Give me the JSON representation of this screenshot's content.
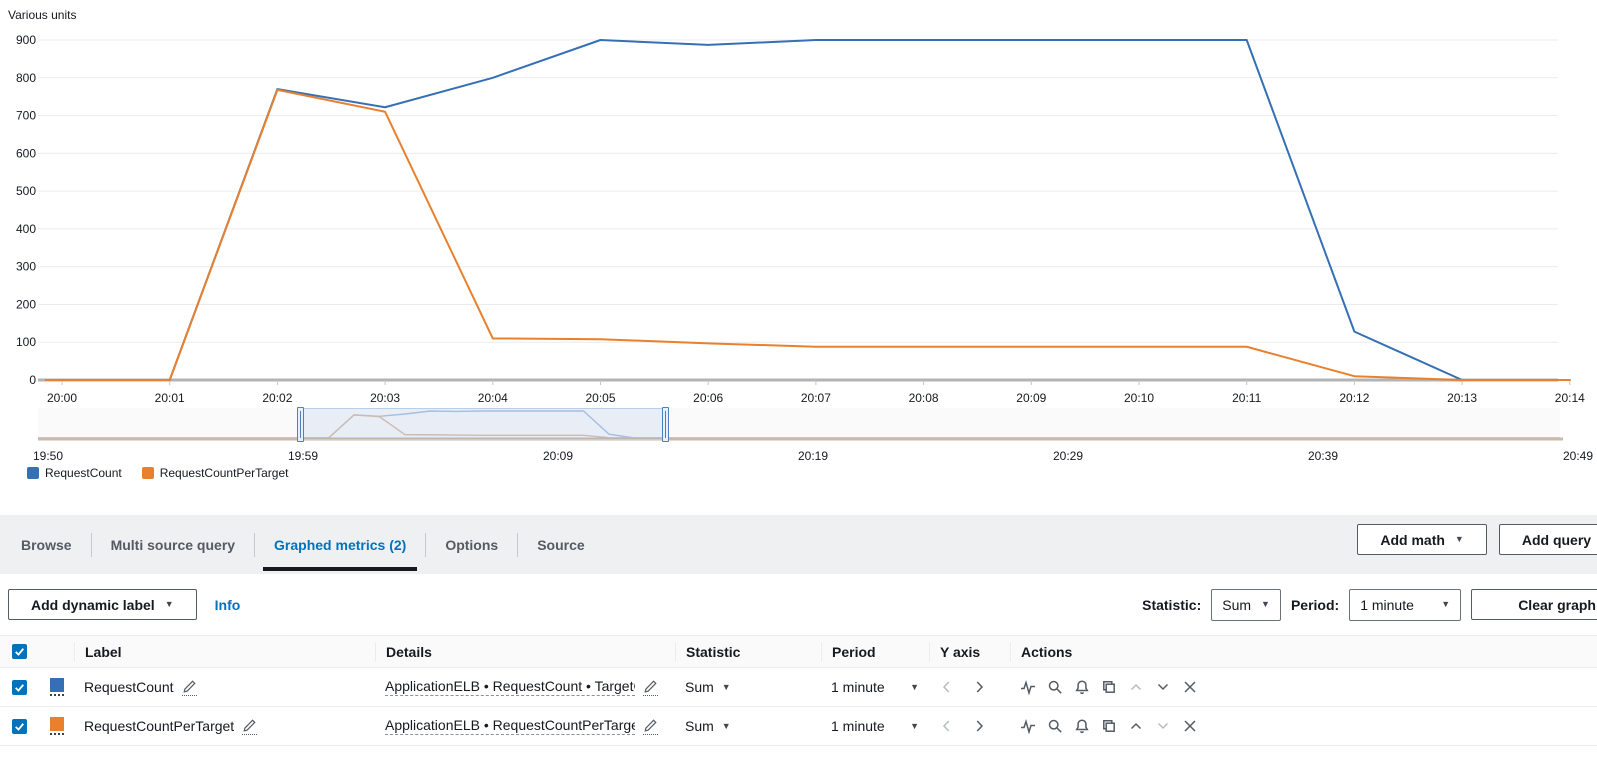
{
  "chart_data": {
    "type": "line",
    "title": "Various units",
    "x": [
      "20:00",
      "20:01",
      "20:02",
      "20:03",
      "20:04",
      "20:05",
      "20:06",
      "20:07",
      "20:08",
      "20:09",
      "20:10",
      "20:11",
      "20:12",
      "20:13",
      "20:14"
    ],
    "series": [
      {
        "name": "RequestCount",
        "color": "#3570b4",
        "values": [
          0,
          0,
          770,
          722,
          800,
          900,
          887,
          900,
          900,
          900,
          900,
          900,
          128,
          0,
          0
        ]
      },
      {
        "name": "RequestCountPerTarget",
        "color": "#e8802e",
        "values": [
          0,
          0,
          768,
          710,
          110,
          108,
          97,
          88,
          88,
          88,
          88,
          88,
          10,
          0,
          0
        ]
      }
    ],
    "ylabel": "Various units",
    "ylim": [
      0,
      900
    ],
    "y_ticks": [
      0,
      100,
      200,
      300,
      400,
      500,
      600,
      700,
      800,
      900
    ],
    "grid": true,
    "legend_position": "bottom-left",
    "minimap": {
      "labels": [
        "19:50",
        "19:59",
        "20:09",
        "20:19",
        "20:29",
        "20:39",
        "20:49"
      ],
      "selection": [
        "20:00",
        "20:14"
      ],
      "mini_colors": [
        "#a9c4e2",
        "#d9bfa9"
      ]
    }
  },
  "tabs": {
    "items": [
      {
        "label": "Browse"
      },
      {
        "label": "Multi source query"
      },
      {
        "label": "Graphed metrics (2)"
      },
      {
        "label": "Options"
      },
      {
        "label": "Source"
      }
    ],
    "add_math": "Add math",
    "add_query": "Add query"
  },
  "toolbar": {
    "add_dynamic_label": "Add dynamic label",
    "info": "Info",
    "statistic_label": "Statistic:",
    "statistic_value": "Sum",
    "period_label": "Period:",
    "period_value": "1 minute",
    "clear_graph": "Clear graph"
  },
  "table": {
    "headers": {
      "label": "Label",
      "details": "Details",
      "statistic": "Statistic",
      "period": "Period",
      "y_axis": "Y axis",
      "actions": "Actions"
    },
    "rows": [
      {
        "label": "RequestCount",
        "color": "#3570b4",
        "details": "ApplicationELB • RequestCount • TargetG",
        "statistic": "Sum",
        "period": "1 minute"
      },
      {
        "label": "RequestCountPerTarget",
        "color": "#e8802e",
        "details": "ApplicationELB • RequestCountPerTarget",
        "statistic": "Sum",
        "period": "1 minute"
      }
    ]
  }
}
